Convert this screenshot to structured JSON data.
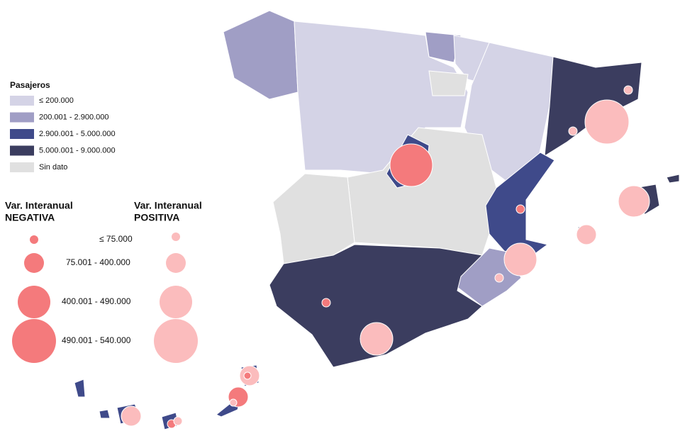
{
  "legend": {
    "title": "Pasajeros",
    "classes": [
      {
        "label": "≤ 200.000",
        "color": "#d4d3e6"
      },
      {
        "label": "200.001 - 2.900.000",
        "color": "#a09ec5"
      },
      {
        "label": "2.900.001 - 5.000.000",
        "color": "#3f4a8a"
      },
      {
        "label": "5.000.001 - 9.000.000",
        "color": "#3b3d5f"
      },
      {
        "label": "Sin dato",
        "color": "#e0e0e0"
      }
    ]
  },
  "size_legend": {
    "negative_title": [
      "Var. Interanual",
      "NEGATIVA"
    ],
    "positive_title": [
      "Var. Interanual",
      "POSITIVA"
    ],
    "negative_color": "#f47a7c",
    "positive_color": "#fbbcbd",
    "classes": [
      "≤ 75.000",
      "75.001 - 400.000",
      "400.001 - 490.000",
      "490.001 - 540.000"
    ]
  }
}
